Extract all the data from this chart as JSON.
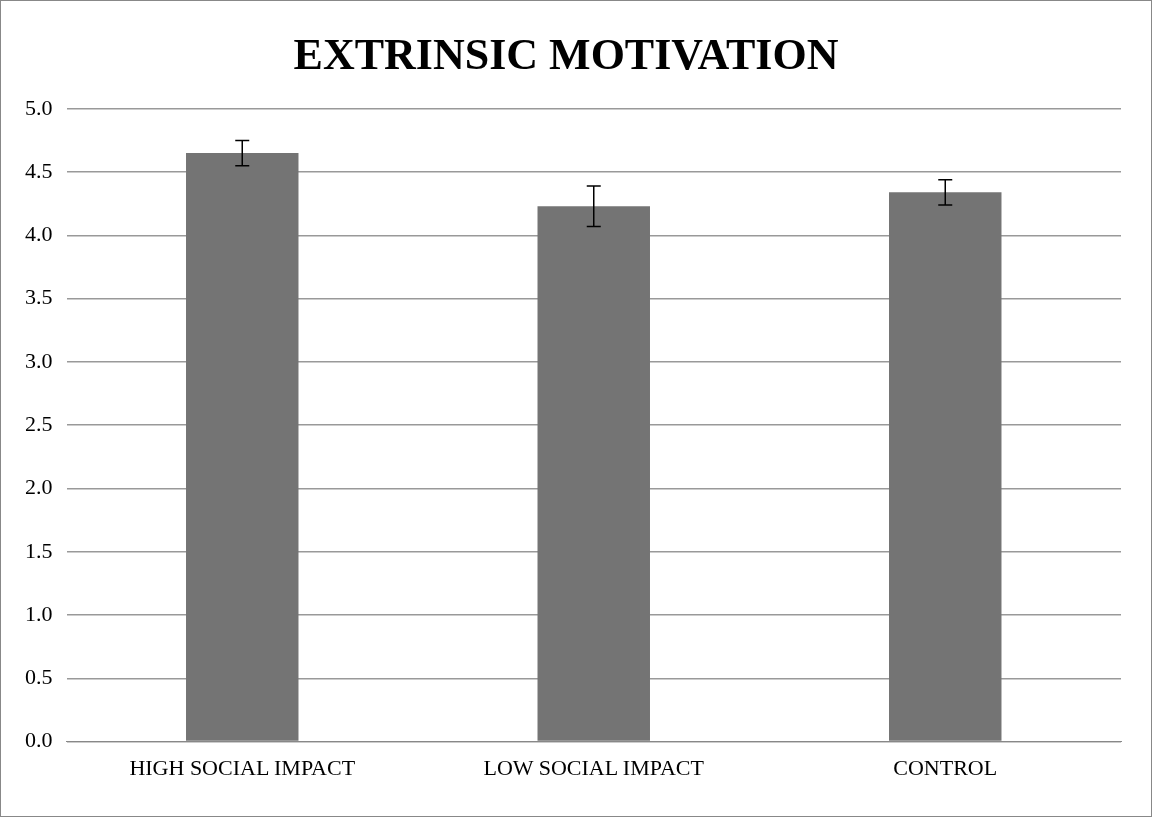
{
  "chart_data": {
    "type": "bar",
    "title": "EXTRINSIC MOTIVATION",
    "categories": [
      "HIGH SOCIAL IMPACT",
      "LOW SOCIAL IMPACT",
      "CONTROL"
    ],
    "values": [
      4.65,
      4.23,
      4.34
    ],
    "errors": [
      0.1,
      0.16,
      0.1
    ],
    "color": "#747474",
    "ylim": [
      0,
      5
    ],
    "yticks": [
      {
        "value": 0,
        "label": "0.0"
      },
      {
        "value": 0.5,
        "label": "0.5"
      },
      {
        "value": 1,
        "label": "1.0"
      },
      {
        "value": 1.5,
        "label": "1.5"
      },
      {
        "value": 2,
        "label": "2.0"
      },
      {
        "value": 2.5,
        "label": "2.5"
      },
      {
        "value": 3,
        "label": "3.0"
      },
      {
        "value": 3.5,
        "label": "3.5"
      },
      {
        "value": 4,
        "label": "4.0"
      },
      {
        "value": 4.5,
        "label": "4.5"
      },
      {
        "value": 5,
        "label": "5.0"
      }
    ],
    "grid": "y",
    "legend": false
  }
}
